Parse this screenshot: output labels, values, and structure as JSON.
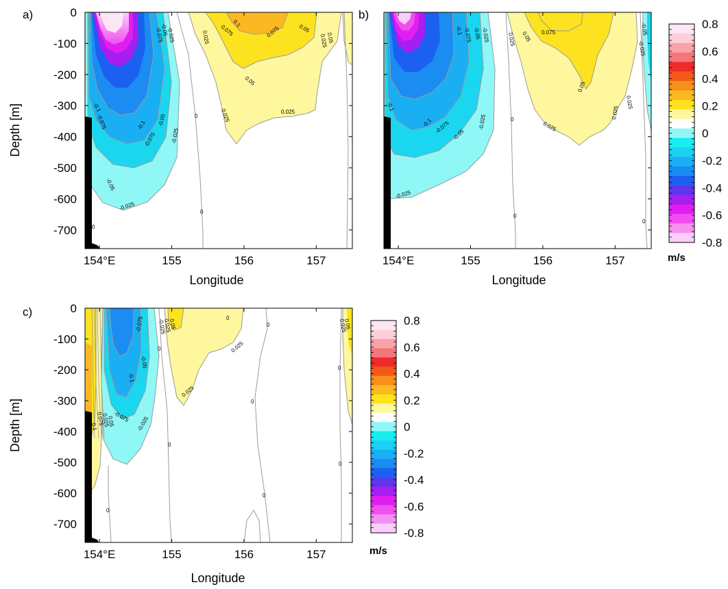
{
  "chart_data": [
    {
      "type": "heatmap",
      "panel_label": "a)",
      "xlabel": "Longitude",
      "ylabel": "Depth [m]",
      "xticks": [
        "154°E",
        "155",
        "156",
        "157"
      ],
      "xtick_values": [
        154,
        155,
        156,
        157
      ],
      "yticks": [
        "0",
        "-100",
        "-200",
        "-300",
        "-400",
        "-500",
        "-600",
        "-700"
      ],
      "ytick_values": [
        0,
        -100,
        -200,
        -300,
        -400,
        -500,
        -600,
        -700
      ],
      "xlim": [
        153.8,
        157.5
      ],
      "ylim": [
        -760,
        0
      ],
      "contour_labels": [
        "-0.025",
        "-0.05",
        "-0.075",
        "-0.1",
        "0",
        "0.025",
        "0.05",
        "0.075",
        "0.1"
      ],
      "jet_core": {
        "lon": 154.2,
        "depth": -50,
        "value": -0.8
      },
      "positive_core": {
        "lon": 155.9,
        "depth": -20,
        "value": 0.1
      }
    },
    {
      "type": "heatmap",
      "panel_label": "b)",
      "xlabel": "Longitude",
      "ylabel": "",
      "xticks": [
        "154°E",
        "155",
        "156",
        "157"
      ],
      "xtick_values": [
        154,
        155,
        156,
        157
      ],
      "xlim": [
        153.8,
        157.5
      ],
      "ylim": [
        -760,
        0
      ],
      "contour_labels": [
        "-0.025",
        "-0.05",
        "-0.075",
        "-0.1",
        "0",
        "0.025",
        "0.05",
        "0.075"
      ],
      "jet_core": {
        "lon": 154.0,
        "depth": -40,
        "value": -0.8
      },
      "positive_core": {
        "lon": 156.2,
        "depth": -20,
        "value": 0.075
      }
    },
    {
      "type": "heatmap",
      "panel_label": "c)",
      "xlabel": "Longitude",
      "ylabel": "Depth [m]",
      "xticks": [
        "154°E",
        "155",
        "156",
        "157"
      ],
      "xtick_values": [
        154,
        155,
        156,
        157
      ],
      "yticks": [
        "0",
        "-100",
        "-200",
        "-300",
        "-400",
        "-500",
        "-600",
        "-700"
      ],
      "ytick_values": [
        0,
        -100,
        -200,
        -300,
        -400,
        -500,
        -600,
        -700
      ],
      "xlim": [
        153.8,
        157.5
      ],
      "ylim": [
        -760,
        0
      ],
      "contour_labels": [
        "-0.025",
        "-0.05",
        "-0.075",
        "-0.1",
        "0",
        "0.025",
        "0.05",
        "0.075",
        "0.1"
      ],
      "jet_core": {
        "lon": 154.2,
        "depth": -60,
        "value": -0.4
      },
      "positive_core": {
        "lon": 153.9,
        "depth": -300,
        "value": 0.2
      }
    }
  ],
  "colorbar": {
    "unit": "m/s",
    "ticks": [
      "0.8",
      "0.6",
      "0.4",
      "0.2",
      "0",
      "-0.2",
      "-0.4",
      "-0.6",
      "-0.8"
    ],
    "colors": [
      "#fde6f4",
      "#fccfd8",
      "#f9a3a9",
      "#f4767a",
      "#ee2a2a",
      "#f35a1a",
      "#f7901a",
      "#fbb820",
      "#fde21f",
      "#fff79d",
      "#ffffff",
      "#8ff7f6",
      "#16eeef",
      "#1cd0f3",
      "#1aaef2",
      "#1a8cf2",
      "#1b60f0",
      "#5f35ee",
      "#a61ff0",
      "#e11ef0",
      "#f14ef2",
      "#f590f0",
      "#fbcdfa"
    ]
  }
}
